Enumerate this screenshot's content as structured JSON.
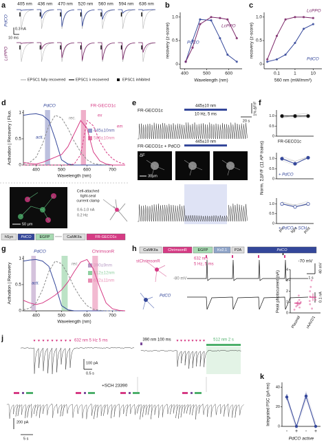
{
  "a": {
    "label": "a",
    "wavelengths": [
      "405 nm",
      "436 nm",
      "470 nm",
      "520 nm",
      "560 nm",
      "594 nm",
      "636 nm"
    ],
    "rows": [
      "PdCO",
      "LcPPO"
    ],
    "scale_current": "0.3 nA",
    "scale_time": "10 ms",
    "legend": [
      "EPSC1 fully recovered",
      "EPSC1 λ recovered",
      "EPSC1 inhibited"
    ]
  },
  "b": {
    "label": "b",
    "xlabel": "Wavelength (nm)",
    "ylabel": "recovery (z-score)",
    "xlim": [
      380,
      660
    ],
    "ylim": [
      -0.1,
      1.1
    ],
    "xticks": [
      400,
      500,
      600
    ],
    "yticks": [
      0,
      0.5,
      {
        "value": 1,
        "label": "1.0"
      }
    ],
    "series": [
      {
        "name": "PdCO",
        "color": "#34479a",
        "x": [
          405,
          436,
          470,
          520,
          560,
          594,
          636
        ],
        "values": [
          0.05,
          0.5,
          0.95,
          0.93,
          0.55,
          0.2,
          0.05
        ]
      },
      {
        "name": "LcPPO",
        "color": "#7a2467",
        "x": [
          405,
          436,
          470,
          520,
          560,
          594,
          636
        ],
        "values": [
          0.05,
          0.35,
          0.85,
          1.0,
          0.98,
          0.95,
          0.55
        ]
      }
    ]
  },
  "c": {
    "label": "c",
    "xlabel": "560 nm (mW/mm²)",
    "ylabel": "recovery (z-score)",
    "log_x": true,
    "xlim": [
      0.02,
      30
    ],
    "ylim": [
      -0.1,
      1.1
    ],
    "xticks": [
      0.1,
      1,
      10
    ],
    "yticks": [
      0,
      0.5,
      {
        "value": 1,
        "label": "1.0"
      }
    ],
    "series": [
      {
        "name": "LcPPO",
        "color": "#7a2467",
        "x": [
          0.03,
          0.1,
          0.3,
          1,
          3,
          10
        ],
        "values": [
          0.1,
          0.6,
          0.95,
          1.0,
          1.0,
          0.98
        ]
      },
      {
        "name": "PdCO",
        "color": "#34479a",
        "x": [
          0.03,
          0.1,
          0.3,
          1,
          3,
          10
        ],
        "values": [
          0.05,
          0.1,
          0.2,
          0.45,
          0.75,
          0.85
        ]
      }
    ]
  },
  "d": {
    "label": "d",
    "titles": [
      "PdCO",
      "FR-GECO1c"
    ],
    "ylabel": "Activation | Recovery | Fluo.",
    "xlabel": "Wavelength (nm)",
    "xlim": [
      350,
      750
    ],
    "ylim": [
      0,
      1.05
    ],
    "xticks": [
      400,
      500,
      600,
      700
    ],
    "yticks": [
      0,
      0.5,
      1
    ],
    "x": [
      350,
      375,
      400,
      425,
      450,
      475,
      500,
      525,
      550,
      575,
      600,
      625,
      650,
      675,
      700,
      725,
      750
    ],
    "series": [
      {
        "name": "acti.",
        "color": "#34479a",
        "dashed": false,
        "values": [
          0.95,
          0.97,
          0.98,
          0.95,
          0.85,
          0.5,
          0.1,
          0.02,
          0,
          0,
          0,
          0,
          0,
          0,
          0,
          0,
          0
        ]
      },
      {
        "name": "rec.",
        "color": "#888888",
        "dashed": true,
        "values": [
          0.02,
          0.05,
          0.15,
          0.4,
          0.75,
          0.95,
          0.9,
          0.7,
          0.45,
          0.25,
          0.1,
          0.03,
          0.01,
          0,
          0,
          0,
          0
        ]
      },
      {
        "name": "ex",
        "color": "#d63a84",
        "dashed": false,
        "values": [
          0.05,
          0.03,
          0.02,
          0.05,
          0.1,
          0.15,
          0.2,
          0.35,
          0.6,
          0.85,
          0.7,
          0.25,
          0.08,
          0.02,
          0,
          0,
          0
        ]
      },
      {
        "name": "em",
        "color": "#d63a84",
        "dashed": true,
        "values": [
          0,
          0,
          0,
          0,
          0,
          0,
          0,
          0,
          0.02,
          0.2,
          0.85,
          0.75,
          0.45,
          0.25,
          0.12,
          0.05,
          0.02
        ]
      }
    ],
    "bands": [
      {
        "center": 445,
        "half_width": 10,
        "label": "445±10nm",
        "color": "#8f96c8"
      },
      {
        "center": 586,
        "half_width": 10,
        "label": "586±10nm",
        "color": "#e57aa6"
      }
    ],
    "image_scale": "50 μm",
    "recording": [
      "Cell-attached",
      "tight-seal",
      "current clamp"
    ],
    "current": "0.6-1.0 nA",
    "rate": "0.2 Hz",
    "construct": [
      "hSyn",
      "PdCO",
      "EGFP",
      "CaMKIIa",
      "FR-GECO1c"
    ]
  },
  "e": {
    "label": "e",
    "trace1": "FR-GECO1c",
    "stim": "445±10 nm",
    "stim_params": "10 Hz, 5 ms",
    "scale_y": "1% ΔF/F",
    "scale_x": "20 s",
    "trace2": "FR-GECO1c + PdCO",
    "stim2": "445±10 nm",
    "image_label": "ΔF",
    "image_scale": "30μm"
  },
  "f": {
    "label": "f",
    "ylabel": "Norm. ΣΔF/F (11 AP trains)",
    "categories": [
      "pre",
      "light",
      "post"
    ],
    "ylim": [
      0,
      1.3
    ],
    "yticks": [
      0,
      0.5,
      {
        "value": 1,
        "label": "1.0"
      }
    ],
    "panels": [
      {
        "name": "FR-GECO1c",
        "color": "#111111",
        "values": [
          1.0,
          1.0,
          1.0
        ]
      },
      {
        "name": "+ PdCO",
        "color": "#34479a",
        "values": [
          1.0,
          0.75,
          1.05
        ]
      },
      {
        "name": "+ PdCO + SCH",
        "color": "#34479a",
        "values": [
          1.0,
          0.85,
          1.0
        ]
      }
    ]
  },
  "g": {
    "label": "g",
    "titles": [
      "PdCO",
      "ChrimsonR"
    ],
    "ylabel": "Activation | Recovery",
    "xlabel": "Wavelength (nm)",
    "xlim": [
      350,
      750
    ],
    "ylim": [
      0,
      1.05
    ],
    "xticks": [
      400,
      500,
      600,
      700
    ],
    "yticks": [
      0,
      0.5,
      1
    ],
    "x": [
      350,
      375,
      400,
      425,
      450,
      475,
      500,
      525,
      550,
      575,
      600,
      625,
      650,
      675,
      700,
      725,
      750
    ],
    "series": [
      {
        "name": "acti.",
        "color": "#34479a",
        "dashed": false,
        "values": [
          0.95,
          0.97,
          0.98,
          0.95,
          0.85,
          0.5,
          0.1,
          0.02,
          0,
          0,
          0,
          0,
          0,
          0,
          0,
          0,
          0
        ]
      },
      {
        "name": "rec.",
        "color": "#888888",
        "dashed": true,
        "values": [
          0.02,
          0.05,
          0.15,
          0.4,
          0.75,
          0.95,
          0.9,
          0.7,
          0.45,
          0.25,
          0.1,
          0.03,
          0.01,
          0,
          0,
          0,
          0
        ]
      },
      {
        "name": "ChrimsonR",
        "color": "#d63a84",
        "dashed": false,
        "values": [
          0.2,
          0.15,
          0.12,
          0.15,
          0.22,
          0.3,
          0.4,
          0.55,
          0.75,
          0.93,
          0.98,
          0.8,
          0.45,
          0.15,
          0.04,
          0.01,
          0
        ]
      }
    ],
    "bands": [
      {
        "center": 390,
        "half_width": 9,
        "label": "390±9nm",
        "color": "#b79ac4"
      },
      {
        "center": 512,
        "half_width": 12,
        "label": "512±12nm",
        "color": "#8fd0a0"
      },
      {
        "center": 632,
        "half_width": 11,
        "label": "632±11nm",
        "color": "#e98cb3"
      }
    ]
  },
  "h": {
    "label": "h",
    "construct": [
      "CaMKIIa",
      "ChrimsonR",
      "EGFP",
      "Kv2.1",
      "P2A",
      "PdCO"
    ],
    "cells": [
      "stChrimsonR",
      "PdCO"
    ],
    "stim": "632 nm",
    "stim_params": "5 Hz, 5 ms",
    "holding": "-80 mV",
    "scale_v": "40 mV",
    "scale_t": "1 s",
    "scale_i": "0.1 nA"
  },
  "i": {
    "label": "i",
    "holding": "-70 mV",
    "ylabel": "Peak photocurrent (nA)",
    "categories": [
      "Plasmid",
      "rAAV2/1"
    ],
    "ylim": [
      0,
      4
    ],
    "yticks": [
      0,
      1,
      2,
      3,
      4
    ],
    "values": [
      0.9,
      1.45
    ],
    "errors": [
      0.2,
      0.35
    ],
    "color": "#d63a84",
    "points": [
      [
        0.3,
        0.5,
        0.7,
        0.8,
        0.9,
        1.0,
        1.2,
        1.6,
        0.6
      ],
      [
        0.4,
        0.8,
        1.2,
        1.5,
        2.0,
        2.4,
        3.0,
        1.1
      ]
    ]
  },
  "j": {
    "label": "j",
    "stim1": "632 nm 5 Hz 5 ms",
    "stim2": "390 nm 100 ms",
    "stim3": "512 nm 2 s",
    "scale_i1": "100 pA",
    "scale_t1": "0.5 s",
    "drug": "+SCH 23390",
    "scale_i2": "200 pA",
    "scale_t2": "5 s"
  },
  "k": {
    "label": "k",
    "ylabel": "Integrated PSC (pA ms)",
    "categories": [
      "-",
      "+",
      "-",
      "+"
    ],
    "xlabel": "PdCO active",
    "ylim": [
      0,
      45
    ],
    "yticks": [
      0,
      20,
      40
    ],
    "values": [
      30,
      0,
      31,
      0
    ],
    "errors": [
      3,
      1,
      3,
      1
    ],
    "color": "#34479a"
  }
}
